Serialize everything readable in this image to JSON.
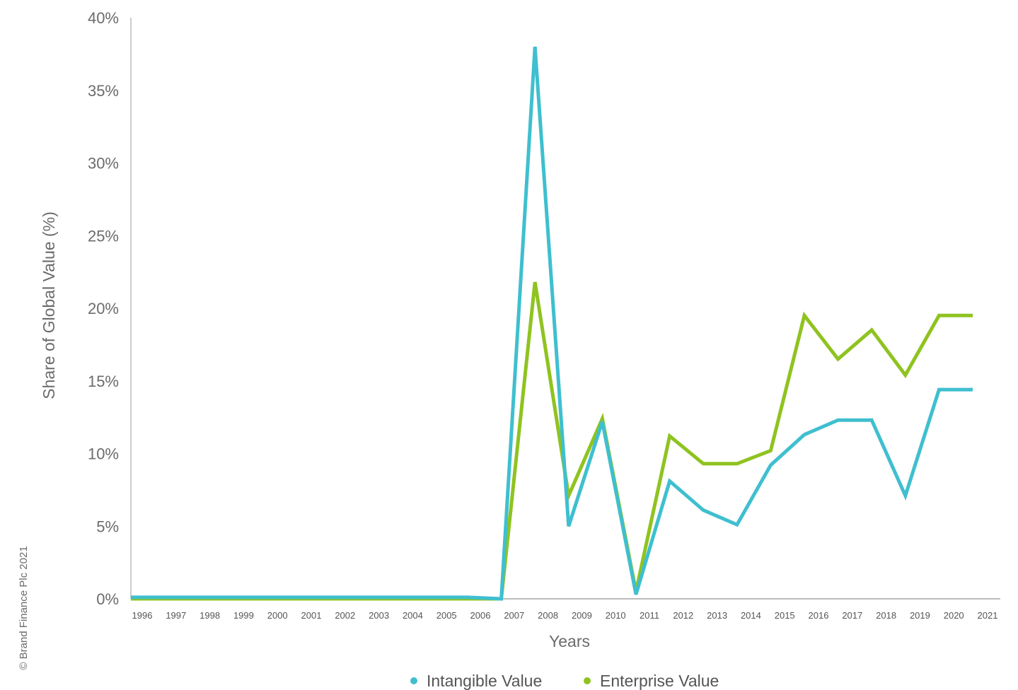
{
  "chart_data": {
    "type": "line",
    "ylabel": "Share of Global Value (%)",
    "xlabel": "Years",
    "ylim": [
      0,
      40
    ],
    "yticks": [
      "0%",
      "5%",
      "10%",
      "15%",
      "20%",
      "25%",
      "30%",
      "35%",
      "40%"
    ],
    "ytick_values": [
      0,
      5,
      10,
      15,
      20,
      25,
      30,
      35,
      40
    ],
    "x": [
      "1996",
      "1997",
      "1998",
      "1999",
      "2000",
      "2001",
      "2002",
      "2003",
      "2004",
      "2005",
      "2006",
      "2007",
      "2008",
      "2009",
      "2010",
      "2011",
      "2012",
      "2013",
      "2014",
      "2015",
      "2016",
      "2017",
      "2018",
      "2019",
      "2020",
      "2021"
    ],
    "series": [
      {
        "name": "Intangible Value",
        "color": "#3fbfcf",
        "values": [
          0.1,
          0.1,
          0.1,
          0.1,
          0.1,
          0.1,
          0.1,
          0.1,
          0.1,
          0.1,
          0.1,
          0.0,
          38.0,
          5.0,
          12.2,
          0.3,
          8.1,
          6.1,
          5.1,
          9.2,
          11.3,
          12.3,
          12.3,
          7.1,
          14.4,
          14.4
        ]
      },
      {
        "name": "Enterprise Value",
        "color": "#8fc320",
        "values": [
          0.0,
          0.0,
          0.0,
          0.0,
          0.0,
          0.0,
          0.0,
          0.0,
          0.0,
          0.0,
          0.0,
          0.0,
          21.8,
          7.1,
          12.4,
          0.5,
          11.2,
          9.3,
          9.3,
          10.2,
          19.5,
          16.5,
          18.5,
          15.4,
          19.5,
          19.5
        ]
      }
    ],
    "grid": false,
    "legend": "bottom-center"
  },
  "copyright": "© Brand Finance Plc 2021"
}
